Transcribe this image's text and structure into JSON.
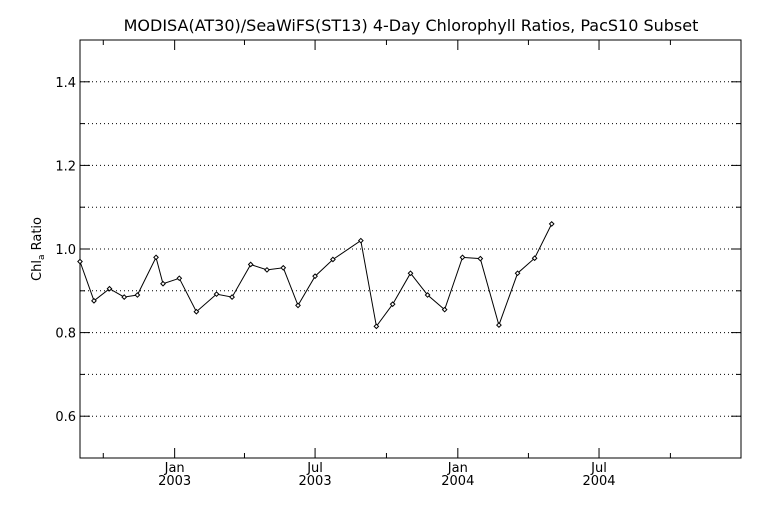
{
  "chart_data": {
    "type": "line",
    "title": "MODISA(AT30)/SeaWiFS(ST13) 4-Day Chlorophyll Ratios, PacS10 Subset",
    "ylabel_main": "Chl",
    "ylabel_sub": "a",
    "ylabel_rest": " Ratio",
    "xlabel": "",
    "x_range": [
      "2002-09-01",
      "2004-12-31"
    ],
    "ylim": [
      0.5,
      1.5
    ],
    "y_ticks": [
      0.6,
      0.8,
      1.0,
      1.2,
      1.4
    ],
    "y_tick_labels": [
      "0.6",
      "0.8",
      "1.0",
      "1.2",
      "1.4"
    ],
    "y_gridlines": [
      0.6,
      0.7,
      0.8,
      0.9,
      1.0,
      1.1,
      1.2,
      1.3,
      1.4
    ],
    "x_ticks": [
      {
        "date": "2003-01-01",
        "label1": "Jan",
        "label2": "2003"
      },
      {
        "date": "2003-07-01",
        "label1": "Jul",
        "label2": "2003"
      },
      {
        "date": "2004-01-01",
        "label1": "Jan",
        "label2": "2004"
      },
      {
        "date": "2004-07-01",
        "label1": "Jul",
        "label2": "2004"
      }
    ],
    "x_minor_ticks": [
      "2002-10-01",
      "2003-04-01",
      "2003-10-01",
      "2004-04-01",
      "2004-10-01"
    ],
    "grid": true,
    "series": [
      {
        "points": [
          [
            "2002-09-01",
            0.97
          ],
          [
            "2002-09-19",
            0.876
          ],
          [
            "2002-10-09",
            0.905
          ],
          [
            "2002-10-28",
            0.885
          ],
          [
            "2002-11-14",
            0.89
          ],
          [
            "2002-12-08",
            0.98
          ],
          [
            "2002-12-17",
            0.917
          ],
          [
            "2003-01-07",
            0.93
          ],
          [
            "2003-01-29",
            0.85
          ],
          [
            "2003-02-24",
            0.892
          ],
          [
            "2003-03-16",
            0.885
          ],
          [
            "2003-04-09",
            0.963
          ],
          [
            "2003-04-30",
            0.95
          ],
          [
            "2003-05-21",
            0.955
          ],
          [
            "2003-06-09",
            0.865
          ],
          [
            "2003-07-01",
            0.935
          ],
          [
            "2003-07-24",
            0.975
          ],
          [
            "2003-08-29",
            1.02
          ],
          [
            "2003-09-18",
            0.815
          ],
          [
            "2003-10-09",
            0.868
          ],
          [
            "2003-11-01",
            0.942
          ],
          [
            "2003-11-23",
            0.89
          ],
          [
            "2003-12-15",
            0.855
          ],
          [
            "2004-01-07",
            0.98
          ],
          [
            "2004-01-30",
            0.977
          ],
          [
            "2004-02-23",
            0.818
          ],
          [
            "2004-03-18",
            0.942
          ],
          [
            "2004-04-09",
            0.978
          ],
          [
            "2004-05-01",
            1.06
          ]
        ]
      }
    ]
  }
}
